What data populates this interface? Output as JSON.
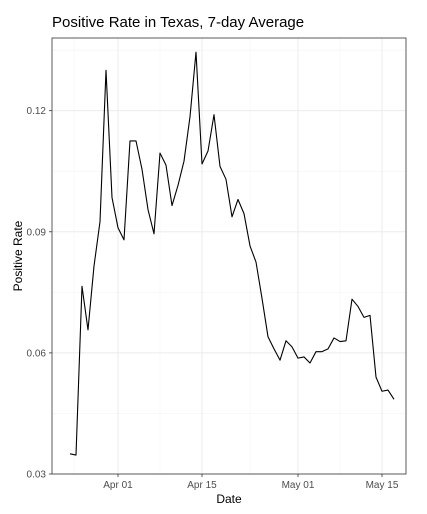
{
  "chart_data": {
    "type": "line",
    "title": "Positive Rate in Texas, 7-day Average",
    "xlabel": "Date",
    "ylabel": "Positive Rate",
    "x_axis_type": "date",
    "xlim": [
      "2020-03-21",
      "2020-05-19"
    ],
    "ylim": [
      0.03,
      0.138
    ],
    "x_ticks": [
      {
        "date": "2020-04-01",
        "label": "Apr 01"
      },
      {
        "date": "2020-04-15",
        "label": "Apr 15"
      },
      {
        "date": "2020-05-01",
        "label": "May 01"
      },
      {
        "date": "2020-05-15",
        "label": "May 15"
      }
    ],
    "y_ticks": [
      {
        "value": 0.03,
        "label": "0.03"
      },
      {
        "value": 0.06,
        "label": "0.06"
      },
      {
        "value": 0.09,
        "label": "0.09"
      },
      {
        "value": 0.12,
        "label": "0.12"
      }
    ],
    "grid": true,
    "legend": "none",
    "series": [
      {
        "color": "#000000",
        "x": [
          "2020-03-24",
          "2020-03-25",
          "2020-03-26",
          "2020-03-27",
          "2020-03-28",
          "2020-03-29",
          "2020-03-30",
          "2020-03-31",
          "2020-04-01",
          "2020-04-02",
          "2020-04-03",
          "2020-04-04",
          "2020-04-05",
          "2020-04-06",
          "2020-04-07",
          "2020-04-08",
          "2020-04-09",
          "2020-04-10",
          "2020-04-11",
          "2020-04-12",
          "2020-04-13",
          "2020-04-14",
          "2020-04-15",
          "2020-04-16",
          "2020-04-17",
          "2020-04-18",
          "2020-04-19",
          "2020-04-20",
          "2020-04-21",
          "2020-04-22",
          "2020-04-23",
          "2020-04-24",
          "2020-04-25",
          "2020-04-26",
          "2020-04-27",
          "2020-04-28",
          "2020-04-29",
          "2020-04-30",
          "2020-05-01",
          "2020-05-02",
          "2020-05-03",
          "2020-05-04",
          "2020-05-05",
          "2020-05-06",
          "2020-05-07",
          "2020-05-08",
          "2020-05-09",
          "2020-05-10",
          "2020-05-11",
          "2020-05-12",
          "2020-05-13",
          "2020-05-14",
          "2020-05-15",
          "2020-05-16",
          "2020-05-17"
        ],
        "y": [
          0.035,
          0.0347,
          0.0765,
          0.0657,
          0.0815,
          0.0925,
          0.13,
          0.0985,
          0.091,
          0.088,
          0.1125,
          0.1125,
          0.1055,
          0.0955,
          0.0895,
          0.1095,
          0.1065,
          0.0965,
          0.1015,
          0.1075,
          0.1185,
          0.1345,
          0.1068,
          0.11,
          0.119,
          0.1062,
          0.103,
          0.0937,
          0.098,
          0.0945,
          0.0865,
          0.0825,
          0.0735,
          0.064,
          0.061,
          0.0582,
          0.063,
          0.0615,
          0.0587,
          0.059,
          0.0575,
          0.0603,
          0.0603,
          0.061,
          0.0637,
          0.0628,
          0.063,
          0.0733,
          0.0715,
          0.0688,
          0.0693,
          0.054,
          0.0505,
          0.0508,
          0.0485
        ]
      }
    ]
  }
}
